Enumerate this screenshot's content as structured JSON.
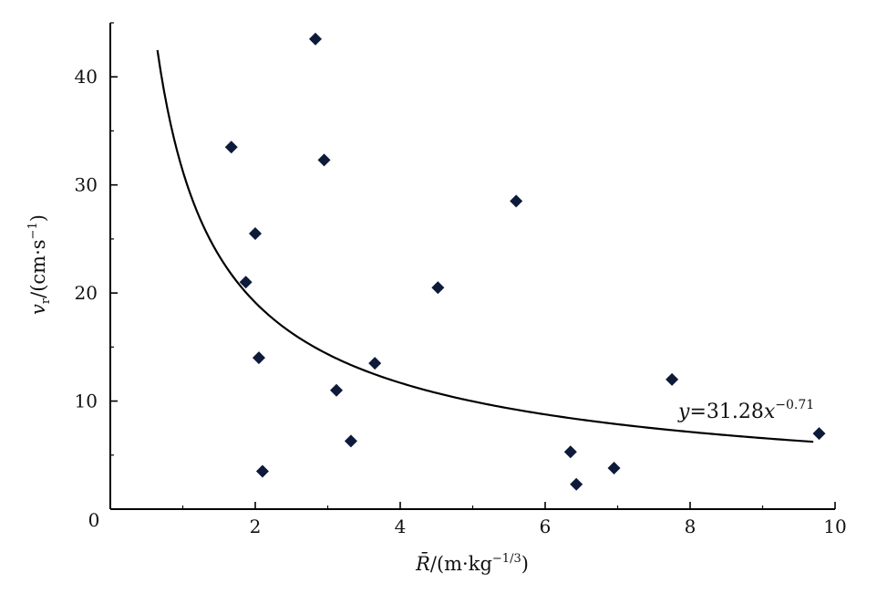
{
  "chart_data": {
    "type": "scatter",
    "xlabel": "R̄/(m·kg−1/3)",
    "xlabel_parts": {
      "symbol": "R̄",
      "unit_open": "/(m·kg",
      "exponent": "−1/3",
      "unit_close": ")"
    },
    "ylabel": "vr/(cm·s−1)",
    "ylabel_parts": {
      "symbol": "v",
      "subscript": "r",
      "unit_open": "/(cm·s",
      "exponent": "−1",
      "unit_close": ")"
    },
    "xlim": [
      0,
      10
    ],
    "ylim": [
      0,
      45
    ],
    "x_ticks": [
      2,
      4,
      6,
      8,
      10
    ],
    "x_tick_labels": [
      "2",
      "4",
      "6",
      "8",
      "10"
    ],
    "y_ticks": [
      10,
      20,
      30,
      40
    ],
    "y_tick_labels": [
      "10",
      "20",
      "30",
      "40"
    ],
    "origin_label": "0",
    "grid": false,
    "marker": "diamond",
    "marker_color": "#0d1a3a",
    "line_color": "#000000",
    "points": [
      {
        "x": 1.67,
        "y": 33.5
      },
      {
        "x": 1.87,
        "y": 21.0
      },
      {
        "x": 2.0,
        "y": 25.5
      },
      {
        "x": 2.05,
        "y": 14.0
      },
      {
        "x": 2.1,
        "y": 3.5
      },
      {
        "x": 2.83,
        "y": 43.5
      },
      {
        "x": 2.95,
        "y": 32.3
      },
      {
        "x": 3.12,
        "y": 11.0
      },
      {
        "x": 3.32,
        "y": 6.3
      },
      {
        "x": 3.65,
        "y": 13.5
      },
      {
        "x": 4.52,
        "y": 20.5
      },
      {
        "x": 5.6,
        "y": 28.5
      },
      {
        "x": 6.35,
        "y": 5.3
      },
      {
        "x": 6.43,
        "y": 2.3
      },
      {
        "x": 6.95,
        "y": 3.8
      },
      {
        "x": 7.75,
        "y": 12.0
      },
      {
        "x": 9.78,
        "y": 7.0
      }
    ],
    "fit": {
      "equation": "y=31.28x−0.71",
      "equation_parts": {
        "lhs": "y",
        "eq": "=31.28",
        "var": "x",
        "exponent": "−0.71"
      },
      "coefficient": 31.28,
      "exponent": -0.71,
      "x_range": [
        0.65,
        9.7
      ]
    }
  }
}
